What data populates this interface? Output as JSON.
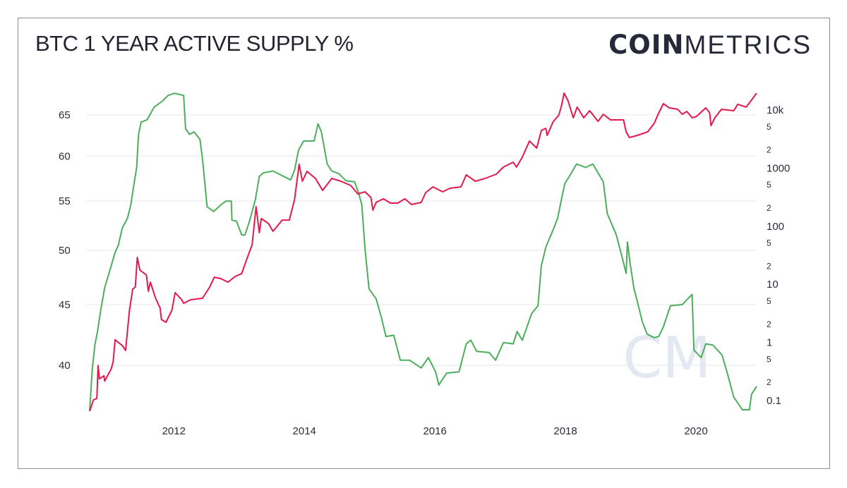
{
  "header": {
    "title": "BTC 1 YEAR ACTIVE SUPPLY %",
    "logo_bold": "COIN",
    "logo_light": "METRICS"
  },
  "watermark": "CM",
  "chart_data": {
    "type": "line",
    "title": "BTC 1 YEAR ACTIVE SUPPLY %",
    "xlabel": "",
    "ylabel_left": "",
    "ylabel_right": "",
    "x_ticks": [
      "2012",
      "2014",
      "2016",
      "2018",
      "2020"
    ],
    "x_range": [
      2010.71,
      2020.93
    ],
    "y_left": {
      "scale": "log",
      "range": [
        36.6,
        67.9
      ],
      "ticks": [
        40,
        45,
        50,
        55,
        60,
        65
      ]
    },
    "y_right": {
      "scale": "log",
      "range": [
        0.066,
        20000
      ],
      "major_ticks": [
        {
          "value": 0.1,
          "label": "0.1"
        },
        {
          "value": 1,
          "label": "1"
        },
        {
          "value": 10,
          "label": "10"
        },
        {
          "value": 100,
          "label": "100"
        },
        {
          "value": 1000,
          "label": "1000"
        },
        {
          "value": 10000,
          "label": "10k"
        }
      ],
      "minor_ticks": [
        {
          "value": 0.2,
          "label": "2"
        },
        {
          "value": 0.5,
          "label": "5"
        },
        {
          "value": 2,
          "label": "2"
        },
        {
          "value": 5,
          "label": "5"
        },
        {
          "value": 20,
          "label": "2"
        },
        {
          "value": 50,
          "label": "5"
        },
        {
          "value": 200,
          "label": "2"
        },
        {
          "value": 500,
          "label": "5"
        },
        {
          "value": 2000,
          "label": "2"
        },
        {
          "value": 5000,
          "label": "5"
        }
      ]
    },
    "grid": "horizontal at left-axis ticks",
    "legend": "none",
    "series": [
      {
        "axis": "left",
        "color": "#4cae5b",
        "x": [
          2010.71,
          2010.75,
          2010.79,
          2010.83,
          2010.88,
          2010.94,
          2011.02,
          2011.1,
          2011.15,
          2011.21,
          2011.29,
          2011.34,
          2011.39,
          2011.43,
          2011.46,
          2011.5,
          2011.59,
          2011.7,
          2011.83,
          2011.91,
          2012.01,
          2012.15,
          2012.18,
          2012.24,
          2012.31,
          2012.4,
          2012.44,
          2012.51,
          2012.61,
          2012.72,
          2012.8,
          2012.88,
          2012.89,
          2012.96,
          2013.04,
          2013.09,
          2013.16,
          2013.25,
          2013.31,
          2013.37,
          2013.52,
          2013.63,
          2013.79,
          2013.85,
          2013.91,
          2013.99,
          2014.15,
          2014.21,
          2014.26,
          2014.35,
          2014.42,
          2014.53,
          2014.64,
          2014.77,
          2014.83,
          2014.88,
          2014.93,
          2014.99,
          2015.1,
          2015.18,
          2015.25,
          2015.37,
          2015.47,
          2015.61,
          2015.79,
          2015.9,
          2016.01,
          2016.06,
          2016.18,
          2016.37,
          2016.48,
          2016.55,
          2016.64,
          2016.83,
          2016.93,
          2017.05,
          2017.2,
          2017.26,
          2017.34,
          2017.45,
          2017.48,
          2017.58,
          2017.63,
          2017.7,
          2017.81,
          2017.88,
          2017.94,
          2017.99,
          2018.06,
          2018.17,
          2018.31,
          2018.42,
          2018.58,
          2018.64,
          2018.78,
          2018.89,
          2018.93,
          2018.95,
          2018.99,
          2019.05,
          2019.1,
          2019.18,
          2019.25,
          2019.36,
          2019.43,
          2019.5,
          2019.61,
          2019.79,
          2019.94,
          2019.97,
          2020.08,
          2020.15,
          2020.26,
          2020.4,
          2020.48,
          2020.58,
          2020.71,
          2020.82,
          2020.85,
          2020.93
        ],
        "y": [
          36.6,
          39.7,
          41.6,
          42.7,
          44.5,
          46.5,
          48.1,
          49.8,
          50.5,
          52.2,
          53.2,
          54.6,
          56.9,
          58.7,
          62.6,
          64.1,
          64.4,
          66.0,
          66.8,
          67.5,
          67.8,
          67.5,
          63.3,
          62.6,
          62.9,
          62.0,
          59.6,
          54.4,
          53.9,
          54.6,
          55.0,
          55.0,
          53.0,
          52.9,
          51.5,
          51.5,
          52.9,
          55.2,
          57.7,
          58.1,
          58.3,
          57.9,
          57.3,
          58.4,
          60.7,
          61.8,
          61.8,
          63.9,
          62.9,
          59.1,
          58.3,
          58.0,
          57.2,
          57.1,
          55.9,
          54.6,
          50.1,
          46.4,
          45.5,
          43.9,
          42.3,
          42.4,
          40.4,
          40.4,
          39.8,
          40.6,
          39.5,
          38.5,
          39.4,
          39.5,
          41.7,
          42.0,
          41.1,
          41.0,
          40.4,
          41.8,
          41.7,
          42.7,
          42.0,
          43.7,
          44.2,
          44.9,
          48.5,
          50.3,
          52.0,
          53.2,
          55.2,
          56.9,
          57.7,
          59.1,
          58.7,
          59.1,
          57.1,
          53.7,
          51.5,
          48.8,
          47.8,
          50.8,
          48.8,
          46.4,
          45.3,
          43.5,
          42.5,
          42.2,
          42.3,
          43.1,
          44.9,
          45.0,
          45.9,
          41.2,
          40.6,
          41.7,
          41.6,
          40.8,
          39.4,
          37.6,
          36.7,
          36.7,
          37.8,
          38.4
        ]
      },
      {
        "axis": "right",
        "color": "#e3194b",
        "x": [
          2010.71,
          2010.77,
          2010.82,
          2010.84,
          2010.86,
          2010.93,
          2010.94,
          2011.04,
          2011.07,
          2011.1,
          2011.21,
          2011.26,
          2011.32,
          2011.37,
          2011.41,
          2011.44,
          2011.48,
          2011.58,
          2011.61,
          2011.64,
          2011.72,
          2011.79,
          2011.81,
          2011.88,
          2011.97,
          2012.02,
          2012.12,
          2012.15,
          2012.26,
          2012.44,
          2012.55,
          2012.62,
          2012.72,
          2012.83,
          2012.94,
          2013.04,
          2013.12,
          2013.2,
          2013.26,
          2013.31,
          2013.34,
          2013.45,
          2013.52,
          2013.66,
          2013.77,
          2013.85,
          2013.92,
          2013.97,
          2014.04,
          2014.17,
          2014.28,
          2014.42,
          2014.56,
          2014.71,
          2014.82,
          2014.93,
          2015.02,
          2015.05,
          2015.1,
          2015.21,
          2015.32,
          2015.43,
          2015.54,
          2015.64,
          2015.79,
          2015.86,
          2015.97,
          2016.12,
          2016.23,
          2016.4,
          2016.48,
          2016.62,
          2016.77,
          2016.94,
          2017.05,
          2017.2,
          2017.25,
          2017.34,
          2017.45,
          2017.56,
          2017.63,
          2017.7,
          2017.72,
          2017.81,
          2017.9,
          2017.94,
          2017.98,
          2018.04,
          2018.12,
          2018.18,
          2018.28,
          2018.37,
          2018.5,
          2018.58,
          2018.69,
          2018.89,
          2018.93,
          2018.98,
          2019.1,
          2019.26,
          2019.36,
          2019.42,
          2019.5,
          2019.59,
          2019.72,
          2019.79,
          2019.86,
          2019.94,
          2020.01,
          2020.15,
          2020.21,
          2020.23,
          2020.29,
          2020.39,
          2020.58,
          2020.64,
          2020.77,
          2020.85,
          2020.93
        ],
        "y": [
          0.064,
          0.1,
          0.106,
          0.39,
          0.23,
          0.26,
          0.21,
          0.34,
          0.45,
          1.08,
          0.86,
          0.71,
          3.48,
          8.04,
          8.75,
          28.3,
          17.1,
          14.1,
          7.39,
          10.6,
          5.6,
          3.78,
          2.42,
          2.16,
          3.48,
          7.0,
          5.29,
          4.6,
          5.29,
          5.6,
          8.75,
          12.9,
          12.2,
          10.6,
          13.3,
          14.9,
          26.7,
          46.8,
          211,
          75.2,
          132,
          108,
          79.5,
          124,
          124,
          280,
          1130,
          578,
          855,
          647,
          402,
          647,
          578,
          489,
          350,
          380,
          304,
          184,
          250,
          288,
          243,
          243,
          288,
          230,
          250,
          370,
          462,
          380,
          437,
          462,
          743,
          578,
          647,
          764,
          1010,
          1230,
          1010,
          1500,
          2850,
          2150,
          4320,
          4700,
          3560,
          6050,
          8000,
          11500,
          19000,
          14000,
          7150,
          10900,
          7150,
          9460,
          6220,
          8220,
          6570,
          6570,
          4090,
          3270,
          3560,
          4090,
          5720,
          8220,
          12500,
          10600,
          10000,
          8220,
          9200,
          7150,
          7560,
          10600,
          8700,
          5260,
          7150,
          10000,
          9460,
          12200,
          10900,
          14400,
          19000
        ]
      }
    ]
  }
}
